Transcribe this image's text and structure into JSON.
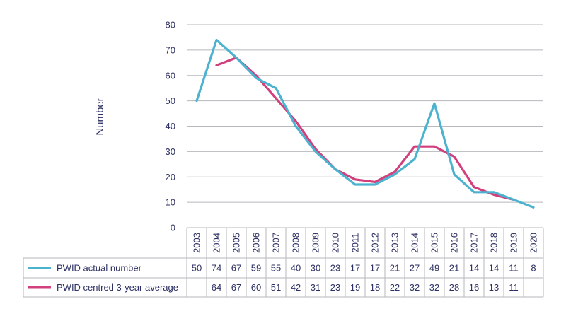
{
  "chart_data": {
    "type": "line",
    "ylabel": "Number",
    "ylim": [
      0,
      80
    ],
    "yticks": [
      0,
      10,
      20,
      30,
      40,
      50,
      60,
      70,
      80
    ],
    "grid": true,
    "categories": [
      "2003",
      "2004",
      "2005",
      "2006",
      "2007",
      "2008",
      "2009",
      "2010",
      "2011",
      "2012",
      "2013",
      "2014",
      "2015",
      "2016",
      "2017",
      "2018",
      "2019",
      "2020"
    ],
    "series": [
      {
        "name": "PWID actual number",
        "color": "#4bb2cf",
        "values": [
          50,
          74,
          67,
          59,
          55,
          40,
          30,
          23,
          17,
          17,
          21,
          27,
          49,
          21,
          14,
          14,
          11,
          8
        ]
      },
      {
        "name": "PWID centred 3-year average",
        "color": "#d13f7d",
        "values": [
          null,
          64,
          67,
          60,
          51,
          42,
          31,
          23,
          19,
          18,
          22,
          32,
          32,
          28,
          16,
          13,
          11,
          null
        ]
      }
    ]
  }
}
